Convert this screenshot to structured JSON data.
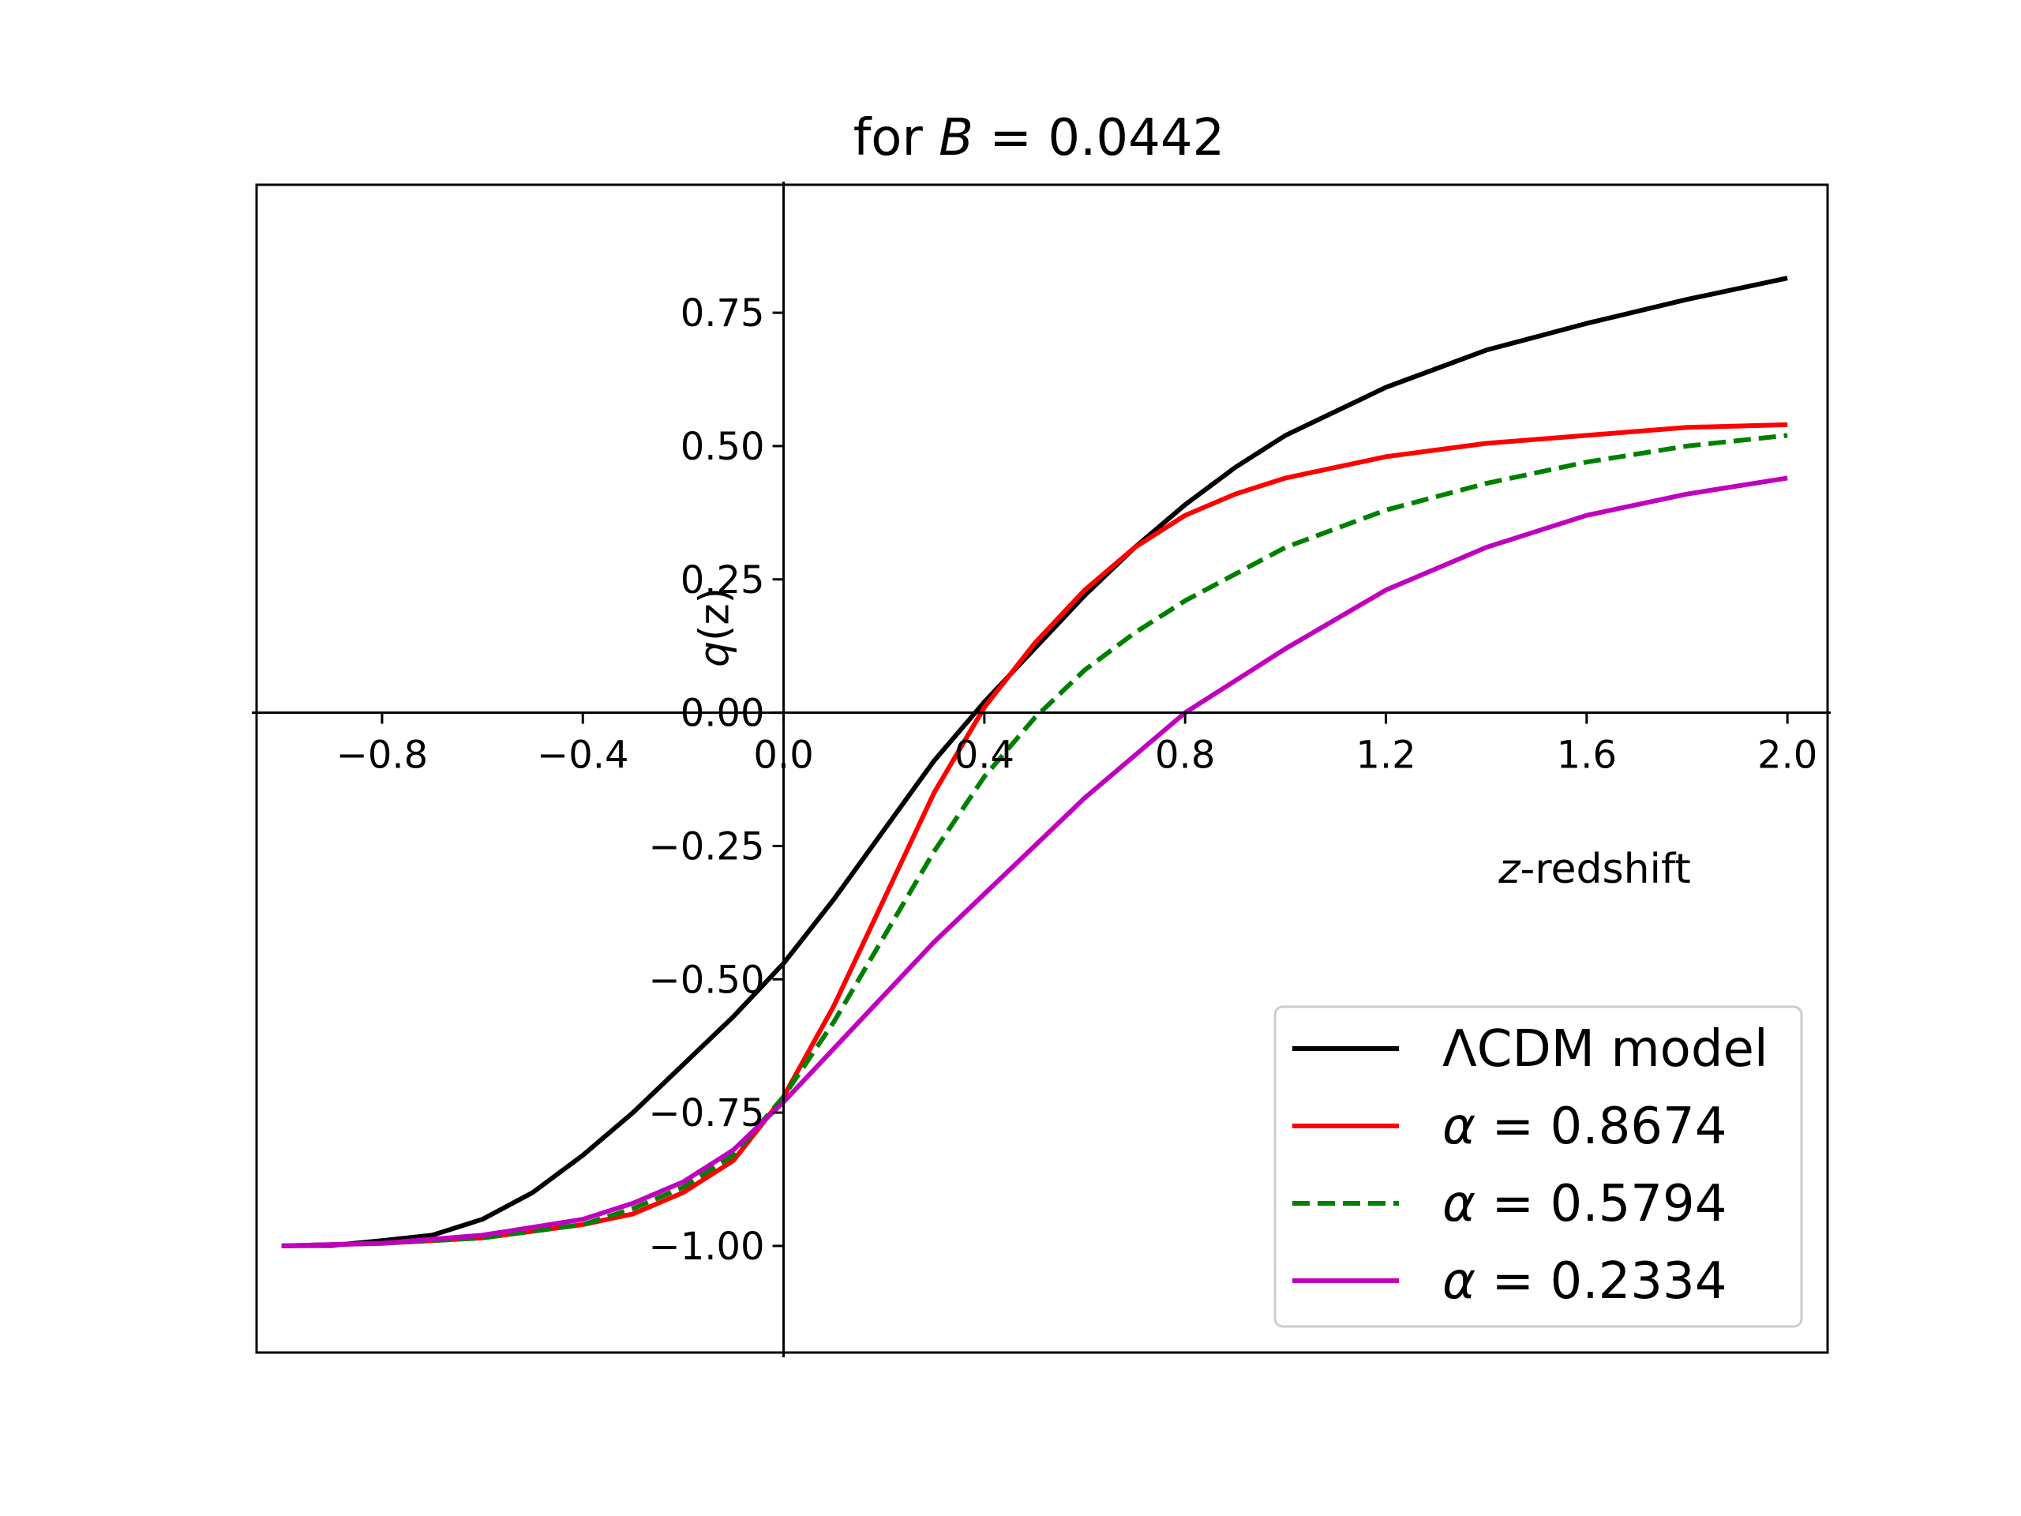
{
  "chart_data": {
    "type": "line",
    "title": {
      "prefix": "for ",
      "var": "B",
      "eq": " = 0.0442"
    },
    "xlabel": {
      "var": "z",
      "rest": "-redshift"
    },
    "ylabel": {
      "var": "q",
      "rest": "(z)"
    },
    "xlim": [
      -1.05,
      2.08
    ],
    "ylim": [
      -1.2,
      0.99
    ],
    "xticks": [
      -0.8,
      -0.4,
      0.0,
      0.4,
      0.8,
      1.2,
      1.6,
      2.0
    ],
    "xtick_labels": [
      "−0.8",
      "−0.4",
      "0.0",
      "0.4",
      "0.8",
      "1.2",
      "1.6",
      "2.0"
    ],
    "yticks": [
      -1.0,
      -0.75,
      -0.5,
      -0.25,
      0.0,
      0.25,
      0.5,
      0.75
    ],
    "ytick_labels": [
      "−1.00",
      "−0.75",
      "−0.50",
      "−0.25",
      "0.00",
      "0.25",
      "0.50",
      "0.75"
    ],
    "legend_position": "lower-right",
    "series": [
      {
        "name": "ΛCDM model",
        "color": "#000000",
        "dash": "solid",
        "x": [
          -1.0,
          -0.9,
          -0.8,
          -0.7,
          -0.6,
          -0.5,
          -0.4,
          -0.3,
          -0.2,
          -0.1,
          0.0,
          0.1,
          0.2,
          0.3,
          0.4,
          0.5,
          0.6,
          0.7,
          0.8,
          0.9,
          1.0,
          1.2,
          1.4,
          1.6,
          1.8,
          2.0
        ],
        "y": [
          -1.0,
          -0.999,
          -0.99,
          -0.98,
          -0.95,
          -0.9,
          -0.83,
          -0.75,
          -0.66,
          -0.57,
          -0.47,
          -0.35,
          -0.22,
          -0.09,
          0.02,
          0.12,
          0.22,
          0.31,
          0.39,
          0.46,
          0.52,
          0.61,
          0.68,
          0.73,
          0.775,
          0.815
        ]
      },
      {
        "name": "α = 0.8674",
        "color": "#ff0000",
        "dash": "solid",
        "x": [
          -1.0,
          -0.8,
          -0.6,
          -0.4,
          -0.3,
          -0.2,
          -0.1,
          0.0,
          0.1,
          0.2,
          0.3,
          0.4,
          0.5,
          0.6,
          0.7,
          0.8,
          0.9,
          1.0,
          1.2,
          1.4,
          1.6,
          1.8,
          2.0
        ],
        "y": [
          -1.0,
          -0.995,
          -0.985,
          -0.96,
          -0.94,
          -0.9,
          -0.84,
          -0.72,
          -0.55,
          -0.35,
          -0.15,
          0.01,
          0.13,
          0.23,
          0.31,
          0.37,
          0.41,
          0.44,
          0.48,
          0.505,
          0.52,
          0.535,
          0.54
        ]
      },
      {
        "name": "α = 0.5794",
        "color": "#008000",
        "dash": "dashed",
        "x": [
          -1.0,
          -0.8,
          -0.6,
          -0.4,
          -0.3,
          -0.2,
          -0.1,
          0.0,
          0.1,
          0.2,
          0.3,
          0.4,
          0.5,
          0.6,
          0.7,
          0.8,
          0.9,
          1.0,
          1.2,
          1.4,
          1.6,
          1.8,
          2.0
        ],
        "y": [
          -1.0,
          -0.995,
          -0.985,
          -0.96,
          -0.93,
          -0.89,
          -0.83,
          -0.72,
          -0.58,
          -0.42,
          -0.26,
          -0.12,
          -0.01,
          0.08,
          0.15,
          0.21,
          0.26,
          0.31,
          0.38,
          0.43,
          0.47,
          0.5,
          0.52
        ]
      },
      {
        "name": "α = 0.2334",
        "color": "#bf00bf",
        "dash": "solid",
        "x": [
          -1.0,
          -0.8,
          -0.6,
          -0.4,
          -0.3,
          -0.2,
          -0.1,
          0.0,
          0.1,
          0.2,
          0.3,
          0.4,
          0.5,
          0.6,
          0.7,
          0.8,
          0.9,
          1.0,
          1.2,
          1.4,
          1.6,
          1.8,
          2.0
        ],
        "y": [
          -1.0,
          -0.995,
          -0.98,
          -0.95,
          -0.92,
          -0.88,
          -0.82,
          -0.73,
          -0.63,
          -0.53,
          -0.43,
          -0.34,
          -0.25,
          -0.16,
          -0.08,
          0.0,
          0.06,
          0.12,
          0.23,
          0.31,
          0.37,
          0.41,
          0.44
        ]
      }
    ]
  }
}
